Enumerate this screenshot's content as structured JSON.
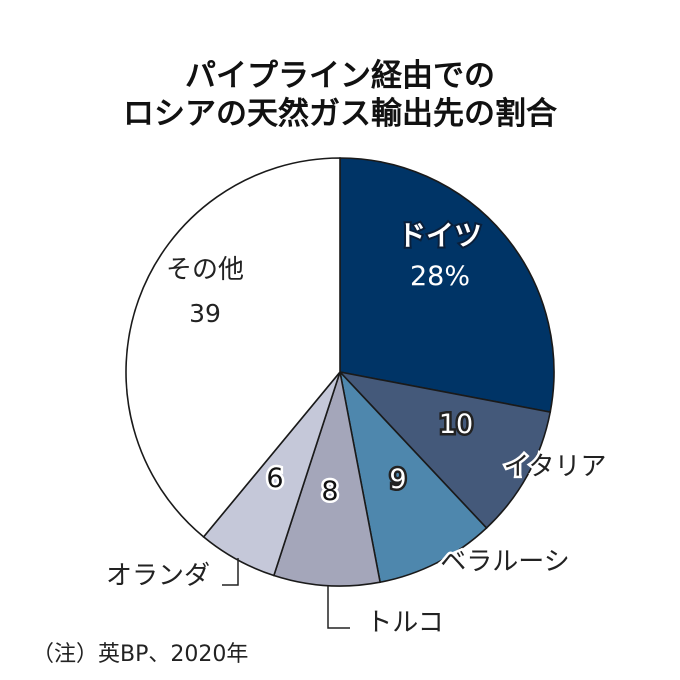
{
  "chart_data": {
    "type": "pie",
    "title": [
      "パイプライン経由での",
      "ロシアの天然ガス輸出先の割合"
    ],
    "unit": "%",
    "slices": [
      {
        "label": "ドイツ",
        "value": 28,
        "value_label": "28%",
        "color": "#003466"
      },
      {
        "label": "イタリア",
        "value": 10,
        "value_label": "10",
        "color": "#44597a"
      },
      {
        "label": "ベラルーシ",
        "value": 9,
        "value_label": "9",
        "color": "#4e87ad"
      },
      {
        "label": "トルコ",
        "value": 8,
        "value_label": "8",
        "color": "#a4a6ba"
      },
      {
        "label": "オランダ",
        "value": 6,
        "value_label": "6",
        "color": "#c5c8d9"
      },
      {
        "label": "その他",
        "value": 39,
        "value_label": "39",
        "color": "#ffffff"
      }
    ],
    "note": "（注）英BP、2020年"
  }
}
